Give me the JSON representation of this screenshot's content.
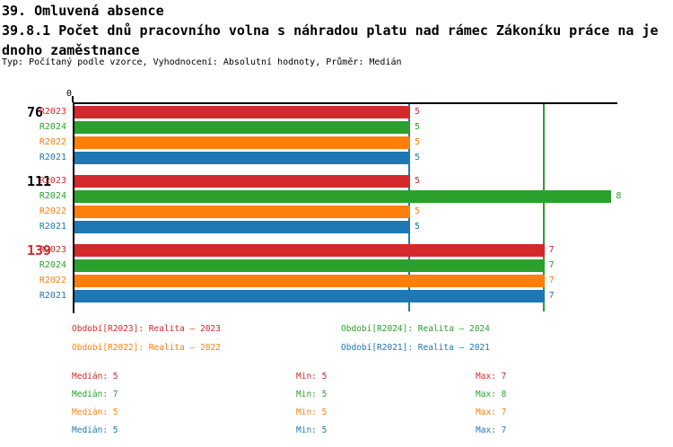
{
  "header": {
    "title": "39. Omluvená absence",
    "subtitle_line1": "39.8.1 Počet dnů pracovního volna s náhradou platu nad rámec Zákoníku práce na je",
    "subtitle_line2": "dnoho zaměstnance",
    "meta": "Typ: Počítaný podle vzorce, Vyhodnocení: Absolutní hodnoty, Průměr: Medián"
  },
  "chart_data": {
    "type": "bar",
    "orientation": "horizontal",
    "axis": {
      "min": 0,
      "max": 8,
      "zero_tick_label": "0"
    },
    "group_labels": [
      {
        "text": "76",
        "color": "#000000"
      },
      {
        "text": "111",
        "color": "#000000"
      },
      {
        "text": "139",
        "color": "#d4292c"
      }
    ],
    "series": [
      {
        "label": "R2023",
        "color": "#d4292c",
        "values": [
          5,
          5,
          7
        ],
        "legend": "Období[R2023]: Realita – 2023",
        "median": 5,
        "min": 5,
        "max": 7
      },
      {
        "label": "R2024",
        "color": "#2ca02c",
        "values": [
          5,
          8,
          7
        ],
        "legend": "Období[R2024]: Realita – 2024",
        "median": 7,
        "min": 5,
        "max": 8
      },
      {
        "label": "R2022",
        "color": "#ff7f0e",
        "values": [
          5,
          5,
          7
        ],
        "legend": "Období[R2022]: Realita – 2022",
        "median": 5,
        "min": 5,
        "max": 7
      },
      {
        "label": "R2021",
        "color": "#1f77b4",
        "values": [
          5,
          5,
          7
        ],
        "legend": "Období[R2021]: Realita – 2021",
        "median": 5,
        "min": 5,
        "max": 7
      }
    ],
    "reference_lines": [
      {
        "value": 5,
        "color": "#1f77b4",
        "name": "reference-line-min"
      },
      {
        "value": 7,
        "color": "#2ca02c",
        "name": "reference-line-median"
      }
    ],
    "stat_labels": {
      "median": "Medián",
      "min": "Min",
      "max": "Max"
    },
    "legend_position": "bottom"
  }
}
